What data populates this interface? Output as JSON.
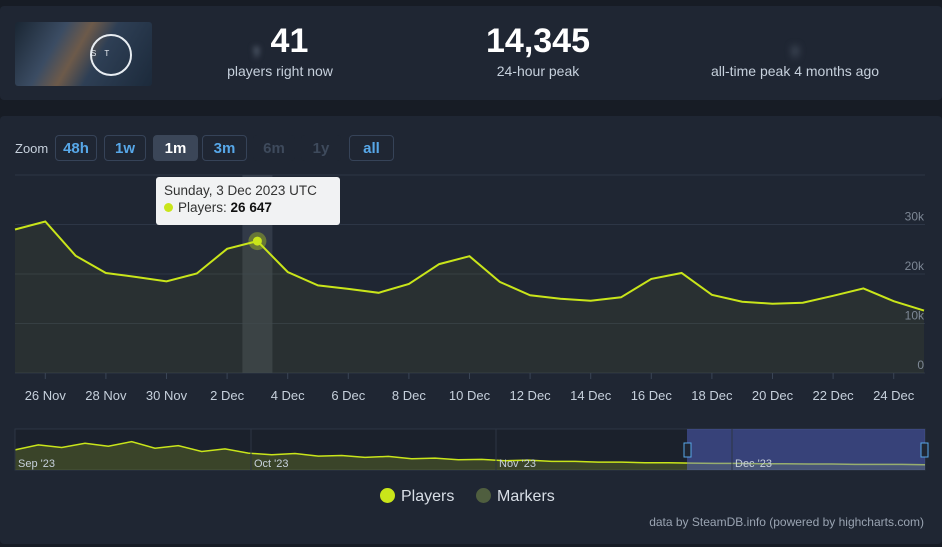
{
  "header": {
    "current": {
      "value": "41",
      "value_prefix": ",",
      "label": "players right now"
    },
    "peak24": {
      "value": "14,345",
      "label": "24-hour peak"
    },
    "alltime": {
      "value": ",",
      "label": "all-time peak 4 months ago"
    },
    "thumbnail_text": "S T"
  },
  "zoom": {
    "label": "Zoom",
    "buttons": [
      {
        "label": "48h",
        "state": "normal"
      },
      {
        "label": "1w",
        "state": "normal"
      },
      {
        "label": "1m",
        "state": "active"
      },
      {
        "label": "3m",
        "state": "normal"
      },
      {
        "label": "6m",
        "state": "disabled"
      },
      {
        "label": "1y",
        "state": "disabled"
      },
      {
        "label": "all",
        "state": "normal"
      }
    ]
  },
  "tooltip": {
    "date": "Sunday, 3 Dec 2023 UTC",
    "series_label": "Players:",
    "value_text": "26 647"
  },
  "legend": {
    "items": [
      {
        "label": "Players",
        "color": "#c9e51a"
      },
      {
        "label": "Markers",
        "color": "#4f5e3f"
      }
    ]
  },
  "credit": "data by SteamDB.info (powered by highcharts.com)",
  "chart_data": {
    "type": "line",
    "series": [
      {
        "name": "Players",
        "color": "#c9e51a",
        "x": [
          "25 Nov",
          "26 Nov",
          "27 Nov",
          "28 Nov",
          "29 Nov",
          "30 Nov",
          "1 Dec",
          "2 Dec",
          "3 Dec",
          "4 Dec",
          "5 Dec",
          "6 Dec",
          "7 Dec",
          "8 Dec",
          "9 Dec",
          "10 Dec",
          "11 Dec",
          "12 Dec",
          "13 Dec",
          "14 Dec",
          "15 Dec",
          "16 Dec",
          "17 Dec",
          "18 Dec",
          "19 Dec",
          "20 Dec",
          "21 Dec",
          "22 Dec",
          "23 Dec",
          "24 Dec",
          "25 Dec"
        ],
        "values": [
          29000,
          30600,
          23700,
          20200,
          19400,
          18500,
          20100,
          25100,
          26647,
          20400,
          17700,
          17000,
          16200,
          18000,
          22000,
          23600,
          18400,
          15700,
          15000,
          14600,
          15300,
          19000,
          20200,
          15800,
          14400,
          14000,
          14200,
          15600,
          17100,
          14500,
          12600
        ]
      }
    ],
    "x_ticks": [
      "26 Nov",
      "28 Nov",
      "30 Nov",
      "2 Dec",
      "4 Dec",
      "6 Dec",
      "8 Dec",
      "10 Dec",
      "12 Dec",
      "14 Dec",
      "16 Dec",
      "18 Dec",
      "20 Dec",
      "22 Dec",
      "24 Dec"
    ],
    "y_ticks": [
      "0",
      "10k",
      "20k",
      "30k"
    ],
    "ylim": [
      0,
      40000
    ],
    "grid": true,
    "highlight": {
      "x": "3 Dec",
      "value": 26647
    },
    "navigator": {
      "labels": [
        "Sep '23",
        "Oct '23",
        "Nov '23",
        "Dec '23"
      ],
      "selected_range": [
        "25 Nov",
        "25 Dec"
      ]
    }
  }
}
